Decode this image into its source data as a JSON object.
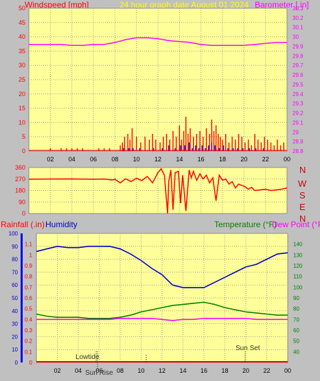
{
  "header": {
    "left_title": "Windspeed [mph]",
    "center_title": "24 hour graph date   August 01 2024",
    "right_title": "Barometer [.in]"
  },
  "colors": {
    "background": "#c0c0c0",
    "plot_background": "#ffff99",
    "grid": "#9a9a9a",
    "wind": "#ff0000",
    "gust": "#0000ff",
    "barometer": "#ff00ff",
    "direction": "#ff0000",
    "humidity": "#0000cc",
    "temperature": "#008000",
    "dew_point": "#ff00ff",
    "rain": "#ff0000",
    "center_title": "#ffff00"
  },
  "direction_labels": [
    "N",
    "W",
    "S",
    "E",
    "N"
  ],
  "bottom_header": {
    "rain_label": "Rainfall (.in)",
    "humidity_label": "Humidity",
    "temperature_label": "Temperature (°F)",
    "dew_label": "Dew Point (°F)"
  },
  "annotations": {
    "lowtide": "Lowtide",
    "sunrise": "Sun Rise",
    "sunset": "Sun Set"
  },
  "chart_data": [
    {
      "type": "line",
      "panel": "wind-barometer",
      "xlabel": "",
      "x_ticks": [
        "02",
        "04",
        "06",
        "08",
        "10",
        "12",
        "14",
        "16",
        "18",
        "20",
        "22",
        "00"
      ],
      "xlim": [
        0,
        24
      ],
      "grid": true,
      "y_left": {
        "label": "Windspeed [mph]",
        "ylim": [
          0,
          50
        ],
        "ticks": [
          "0",
          "5",
          "10",
          "15",
          "20",
          "25",
          "30",
          "35",
          "40",
          "45",
          "50"
        ]
      },
      "y_right": {
        "label": "Barometer [.in]",
        "ylim": [
          28.8,
          30.3
        ],
        "ticks": [
          "28.8",
          "28.9",
          "29",
          "29.1",
          "29.2",
          "29.3",
          "29.4",
          "29.5",
          "29.6",
          "29.7",
          "29.8",
          "29.9",
          "30",
          "30.1",
          "30.2",
          "30.3"
        ]
      },
      "series": [
        {
          "name": "Barometer [.in]",
          "axis": "right",
          "x": [
            0,
            1,
            2,
            3,
            4,
            5,
            6,
            7,
            8,
            9,
            10,
            11,
            12,
            13,
            14,
            15,
            16,
            17,
            18,
            19,
            20,
            21,
            22,
            23,
            24
          ],
          "y": [
            29.92,
            29.92,
            29.92,
            29.92,
            29.91,
            29.91,
            29.92,
            29.92,
            29.94,
            29.97,
            29.99,
            29.99,
            29.98,
            29.96,
            29.95,
            29.94,
            29.92,
            29.91,
            29.91,
            29.91,
            29.91,
            29.92,
            29.93,
            29.94,
            29.94
          ]
        },
        {
          "name": "Windspeed [mph]",
          "axis": "left",
          "style": "bars",
          "x": [
            2,
            3,
            3.5,
            4,
            4.5,
            5,
            6.5,
            7,
            7.5,
            8.5,
            8.7,
            8.9,
            9.2,
            9.4,
            9.6,
            10,
            10.4,
            10.8,
            11.2,
            11.5,
            11.8,
            12.2,
            12.5,
            12.8,
            13.1,
            13.4,
            13.7,
            14,
            14.2,
            14.4,
            14.6,
            14.8,
            15,
            15.3,
            15.6,
            15.9,
            16.2,
            16.5,
            16.8,
            17,
            17.2,
            17.4,
            17.6,
            17.8,
            18,
            18.3,
            18.6,
            18.9,
            19.2,
            19.5,
            19.8,
            20.1,
            20.4,
            20.7,
            21,
            21.3,
            21.6,
            21.9,
            22.2,
            22.5,
            22.8,
            23.1,
            23.4,
            23.7
          ],
          "y": [
            1,
            1,
            1,
            1,
            1,
            1,
            1,
            1,
            1,
            2,
            3,
            5,
            6,
            4,
            8,
            5,
            3,
            5,
            4,
            6,
            4,
            3,
            5,
            6,
            4,
            7,
            5,
            9,
            4,
            7,
            12,
            6,
            8,
            5,
            6,
            7,
            5,
            8,
            6,
            11,
            7,
            9,
            6,
            5,
            4,
            6,
            3,
            5,
            4,
            6,
            5,
            3,
            4,
            2,
            6,
            4,
            3,
            5,
            4,
            3,
            2,
            4,
            2,
            3
          ]
        },
        {
          "name": "Gust",
          "axis": "left",
          "style": "bars",
          "x": [
            8.8,
            9.3,
            9.7,
            10.3,
            11.6,
            12.4,
            13,
            13.6,
            14.1,
            14.5,
            14.9,
            15.2,
            15.5,
            15.8,
            16.1,
            16.4,
            16.7,
            17,
            17.3,
            17.7,
            18.1,
            18.5,
            19,
            19.4,
            19.9,
            20.5,
            21.1,
            21.8
          ],
          "y": [
            1,
            1,
            1,
            1,
            1,
            1,
            2,
            1,
            2,
            2,
            3,
            1,
            2,
            1,
            2,
            1,
            2,
            3,
            2,
            1,
            2,
            1,
            1,
            1,
            1,
            1,
            1,
            1
          ]
        }
      ]
    },
    {
      "type": "line",
      "panel": "wind-direction",
      "xlim": [
        0,
        24
      ],
      "grid": true,
      "y_left": {
        "label": "",
        "ylim": [
          0,
          360
        ],
        "ticks": [
          "0",
          "90",
          "180",
          "270",
          "360"
        ]
      },
      "series": [
        {
          "name": "Wind direction",
          "x": [
            0,
            2,
            4,
            6,
            7,
            7.8,
            8,
            8.5,
            9,
            9.5,
            10,
            10.5,
            11,
            11.5,
            12,
            12.3,
            12.6,
            12.9,
            13,
            13.2,
            13.4,
            13.6,
            13.9,
            14.1,
            14.3,
            14.6,
            14.9,
            15.1,
            15.3,
            15.6,
            15.9,
            16.2,
            16.5,
            16.8,
            17.1,
            17.4,
            17.7,
            18,
            18.3,
            18.6,
            18.9,
            19.2,
            19.5,
            19.8,
            20.1,
            20.4,
            20.7,
            21,
            21.5,
            22,
            22.5,
            23,
            23.5,
            24
          ],
          "y": [
            268,
            270,
            271,
            268,
            269,
            263,
            268,
            240,
            272,
            250,
            276,
            258,
            290,
            240,
            320,
            350,
            300,
            0,
            250,
            340,
            30,
            320,
            330,
            80,
            300,
            20,
            340,
            280,
            330,
            260,
            310,
            270,
            300,
            240,
            280,
            100,
            300,
            260,
            270,
            230,
            250,
            200,
            230,
            220,
            210,
            190,
            205,
            180,
            185,
            190,
            180,
            185,
            190,
            200
          ]
        }
      ]
    },
    {
      "type": "line",
      "panel": "temperature-humidity-rain",
      "xlim": [
        0,
        24
      ],
      "x_ticks": [
        "02",
        "04",
        "06",
        "08",
        "10",
        "12",
        "14",
        "16",
        "18",
        "20",
        "22",
        "00"
      ],
      "grid": true,
      "y_left_outer": {
        "label": "Rainfall (.in)",
        "ylim": [
          0,
          100
        ],
        "ticks": [
          "0",
          "10",
          "20",
          "30",
          "40",
          "50",
          "60",
          "70",
          "80",
          "90",
          "100"
        ]
      },
      "y_left_inner": {
        "label": "Humidity",
        "ylim": [
          0,
          1.2
        ],
        "ticks": [
          "0",
          "0.1",
          "0.2",
          "0.3",
          "0.4",
          "0.5",
          "0.6",
          "0.7",
          "0.8",
          "0.9",
          "1",
          "1.1"
        ]
      },
      "y_right": {
        "label": "Temperature (°F)",
        "ylim": [
          30,
          150
        ],
        "ticks": [
          "40",
          "50",
          "60",
          "70",
          "80",
          "90",
          "100",
          "110",
          "120",
          "130",
          "140"
        ]
      },
      "series": [
        {
          "name": "Humidity",
          "axis": "left_outer",
          "x": [
            0,
            1,
            2,
            3,
            4,
            5,
            6,
            7,
            8,
            9,
            10,
            11,
            12,
            13,
            14,
            15,
            16,
            17,
            18,
            19,
            20,
            21,
            22,
            23,
            24
          ],
          "y": [
            86,
            88,
            90,
            89,
            89,
            90,
            90,
            90,
            88,
            84,
            79,
            73,
            68,
            60,
            58,
            58,
            58,
            62,
            66,
            70,
            74,
            76,
            80,
            84,
            85
          ]
        },
        {
          "name": "Temperature (°F)",
          "axis": "right",
          "x": [
            0,
            1,
            2,
            3,
            4,
            5,
            6,
            7,
            8,
            9,
            10,
            11,
            12,
            13,
            14,
            15,
            16,
            17,
            18,
            19,
            20,
            21,
            22,
            23,
            24
          ],
          "y": [
            75,
            73,
            72,
            72,
            72,
            71,
            71,
            71,
            72,
            74,
            77,
            79,
            81,
            83,
            84,
            85,
            86,
            84,
            81,
            79,
            77,
            76,
            75,
            74,
            74
          ]
        },
        {
          "name": "Dew Point (°F)",
          "axis": "right",
          "x": [
            0,
            1,
            2,
            3,
            4,
            5,
            6,
            7,
            8,
            9,
            10,
            11,
            12,
            13,
            14,
            15,
            16,
            17,
            18,
            19,
            20,
            21,
            22,
            23,
            24
          ],
          "y": [
            70,
            70,
            70,
            70,
            70,
            70,
            70,
            70,
            71,
            71,
            71,
            71,
            70,
            69,
            70,
            70,
            71,
            71,
            71,
            71,
            71,
            70,
            70,
            70,
            70
          ]
        },
        {
          "name": "Rainfall (.in)",
          "axis": "left_outer",
          "x": [
            0,
            24
          ],
          "y": [
            0,
            0
          ]
        }
      ]
    }
  ]
}
